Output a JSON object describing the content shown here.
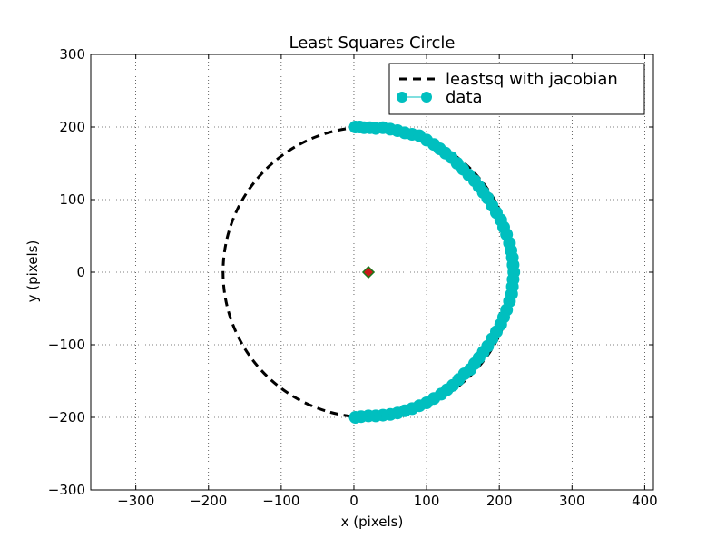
{
  "chart_data": {
    "type": "scatter",
    "title": "Least Squares Circle",
    "xlabel": "x (pixels)",
    "ylabel": "y (pixels)",
    "xlim": [
      -362,
      412
    ],
    "ylim": [
      -300,
      300
    ],
    "xticks": [
      -300,
      -200,
      -100,
      0,
      100,
      200,
      300,
      400
    ],
    "yticks": [
      -300,
      -200,
      -100,
      0,
      100,
      200,
      300
    ],
    "grid": true,
    "legend_position": "top-right",
    "fit_circle": {
      "center": [
        20,
        0
      ],
      "radius": 200
    },
    "center_marker": [
      20,
      0
    ],
    "series": [
      {
        "name": "leastsq with jacobian",
        "style": "dashed-line",
        "color": "#000000"
      },
      {
        "name": "data",
        "style": "markers",
        "color": "#00bfbf",
        "points": [
          [
            2,
            200
          ],
          [
            8,
            200
          ],
          [
            14,
            199
          ],
          [
            22,
            199
          ],
          [
            30,
            198
          ],
          [
            40,
            199
          ],
          [
            50,
            197
          ],
          [
            60,
            195
          ],
          [
            70,
            192
          ],
          [
            80,
            190
          ],
          [
            90,
            188
          ],
          [
            100,
            182
          ],
          [
            110,
            176
          ],
          [
            118,
            170
          ],
          [
            126,
            164
          ],
          [
            134,
            158
          ],
          [
            142,
            150
          ],
          [
            150,
            142
          ],
          [
            158,
            134
          ],
          [
            166,
            126
          ],
          [
            172,
            118
          ],
          [
            178,
            110
          ],
          [
            184,
            102
          ],
          [
            190,
            92
          ],
          [
            196,
            82
          ],
          [
            202,
            72
          ],
          [
            206,
            62
          ],
          [
            210,
            52
          ],
          [
            214,
            40
          ],
          [
            216,
            30
          ],
          [
            218,
            20
          ],
          [
            219,
            10
          ],
          [
            220,
            0
          ],
          [
            219,
            -10
          ],
          [
            218,
            -20
          ],
          [
            217,
            -30
          ],
          [
            214,
            -40
          ],
          [
            210,
            -52
          ],
          [
            206,
            -62
          ],
          [
            202,
            -72
          ],
          [
            196,
            -82
          ],
          [
            190,
            -92
          ],
          [
            184,
            -102
          ],
          [
            178,
            -110
          ],
          [
            172,
            -118
          ],
          [
            166,
            -126
          ],
          [
            160,
            -134
          ],
          [
            152,
            -140
          ],
          [
            144,
            -148
          ],
          [
            136,
            -156
          ],
          [
            128,
            -162
          ],
          [
            120,
            -168
          ],
          [
            110,
            -174
          ],
          [
            100,
            -180
          ],
          [
            90,
            -184
          ],
          [
            80,
            -188
          ],
          [
            70,
            -191
          ],
          [
            60,
            -194
          ],
          [
            50,
            -196
          ],
          [
            40,
            -197
          ],
          [
            30,
            -198
          ],
          [
            20,
            -198
          ],
          [
            10,
            -199
          ],
          [
            2,
            -200
          ]
        ]
      }
    ]
  }
}
